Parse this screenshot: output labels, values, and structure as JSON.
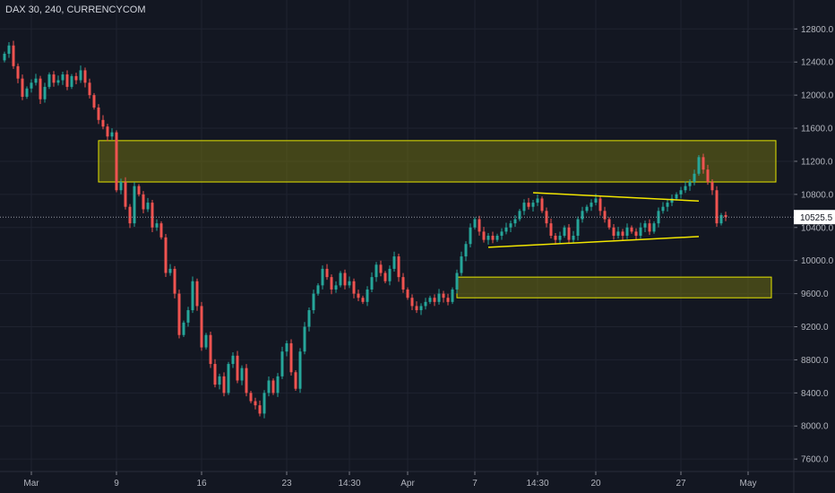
{
  "header": {
    "title": "DAX 30, 240, CURRENCYCOM"
  },
  "price_label": "10525.5",
  "colors": {
    "background": "#131722",
    "up": "#26a69a",
    "down": "#ef5350",
    "zone_fill": "#6b6b12",
    "zone_stroke": "#e6e600",
    "trendline": "#f2e600",
    "grid": "#1f2330",
    "price_line": "#9598a1",
    "price_label_bg": "#ffffff"
  },
  "chart_data": {
    "type": "candlestick",
    "title": "DAX 30, 240, CURRENCYCOM",
    "xlabel": "",
    "ylabel": "",
    "ylim": [
      7450,
      13150
    ],
    "y_ticks": [
      7600,
      8000,
      8400,
      8800,
      9200,
      9600,
      10000,
      10400,
      10800,
      11200,
      11600,
      12000,
      12400,
      12800
    ],
    "y_tick_labels": [
      "7600.0",
      "8000.0",
      "8400.0",
      "8800.0",
      "9200.0",
      "9600.0",
      "10000.0",
      "10400.0",
      "10800.0",
      "11200.0",
      "11600.0",
      "12000.0",
      "12400.0",
      "12800.0"
    ],
    "x_tick_labels": [
      {
        "label": "Mar",
        "bar": 6
      },
      {
        "label": "9",
        "bar": 25
      },
      {
        "label": "16",
        "bar": 44
      },
      {
        "label": "23",
        "bar": 63
      },
      {
        "label": "14:30",
        "bar": 77
      },
      {
        "label": "Apr",
        "bar": 90
      },
      {
        "label": "7",
        "bar": 105
      },
      {
        "label": "14:30",
        "bar": 119
      },
      {
        "label": "20",
        "bar": 132
      },
      {
        "label": "27",
        "bar": 151
      },
      {
        "label": "May",
        "bar": 166
      }
    ],
    "last_price": 10525.5,
    "grid": true,
    "closes": [
      12500,
      12600,
      12350,
      12200,
      11980,
      12080,
      12150,
      12200,
      11950,
      12100,
      12250,
      12150,
      12180,
      12250,
      12100,
      12230,
      12180,
      12300,
      12150,
      12000,
      11850,
      11700,
      11620,
      11500,
      11550,
      10850,
      10950,
      10650,
      10450,
      10900,
      10800,
      10620,
      10700,
      10400,
      10450,
      10280,
      9850,
      9900,
      9600,
      9100,
      9250,
      9400,
      9750,
      9450,
      8950,
      9100,
      8750,
      8500,
      8600,
      8400,
      8750,
      8850,
      8550,
      8700,
      8400,
      8300,
      8250,
      8150,
      8400,
      8550,
      8400,
      8600,
      8900,
      9000,
      8650,
      8450,
      8900,
      9200,
      9400,
      9600,
      9700,
      9900,
      9800,
      9650,
      9700,
      9850,
      9700,
      9750,
      9600,
      9550,
      9500,
      9650,
      9800,
      9950,
      9850,
      9750,
      9900,
      10050,
      9800,
      9650,
      9550,
      9450,
      9400,
      9450,
      9500,
      9550,
      9500,
      9600,
      9550,
      9500,
      9650,
      9850,
      10050,
      10200,
      10400,
      10500,
      10350,
      10250,
      10300,
      10250,
      10300,
      10350,
      10400,
      10450,
      10500,
      10600,
      10700,
      10650,
      10700,
      10750,
      10600,
      10450,
      10300,
      10250,
      10300,
      10400,
      10250,
      10300,
      10500,
      10600,
      10650,
      10700,
      10750,
      10600,
      10500,
      10400,
      10300,
      10350,
      10300,
      10400,
      10350,
      10300,
      10400,
      10450,
      10350,
      10450,
      10600,
      10650,
      10700,
      10750,
      10800,
      10850,
      10900,
      10950,
      11050,
      11250,
      11100,
      10950,
      10850,
      10450,
      10550,
      10525.5
    ],
    "support_resistance_zones": [
      {
        "low": 10950,
        "high": 11450
      },
      {
        "low": 9550,
        "high": 9800
      }
    ],
    "trendlines": [
      {
        "from": {
          "bar": 108,
          "price": 10160
        },
        "to": {
          "bar": 155,
          "price": 10290
        }
      },
      {
        "from": {
          "bar": 118,
          "price": 10820
        },
        "to": {
          "bar": 155,
          "price": 10720
        }
      }
    ]
  }
}
